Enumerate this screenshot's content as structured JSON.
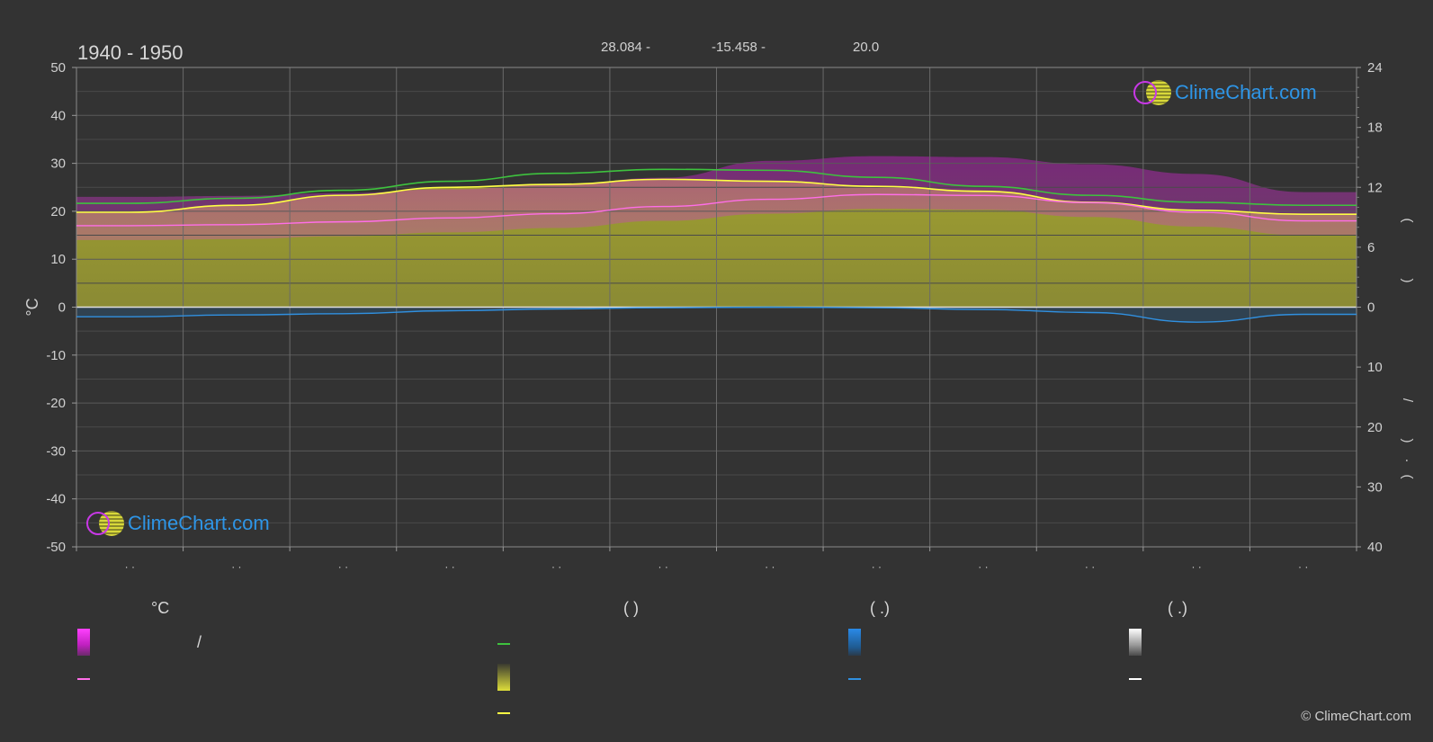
{
  "header": {
    "period": "1940 - 1950",
    "lat": "28.084 -",
    "lon": "-15.458 -",
    "elev": "20.0"
  },
  "logo_text": "ClimeChart.com",
  "copyright": "© ClimeChart.com",
  "legend": {
    "col1_head": "°C",
    "col2_head": "(          )",
    "col3_head": "(    .)",
    "col4_head": "(    .)",
    "slash": "/"
  },
  "colors": {
    "background": "#333333",
    "max_daylight": "#3ec23e",
    "sunshine": "#ffff44",
    "avg_temp": "#ff6ee8",
    "precipitation": "#3090e0",
    "temp_band": "#d020d0",
    "sunshine_fill": "#a5a532"
  },
  "chart_data": {
    "type": "area",
    "title": "1940 - 1950",
    "xlabel": "",
    "ylabel_left": "°C",
    "left_axis": {
      "range": [
        -50,
        50
      ],
      "ticks": [
        50,
        40,
        30,
        20,
        10,
        0,
        -10,
        -20,
        -30,
        -40,
        -50
      ]
    },
    "right_axis_top": {
      "range": [
        0,
        24
      ],
      "ticks": [
        24,
        18,
        12,
        6,
        0
      ]
    },
    "right_axis_bottom": {
      "range": [
        0,
        40
      ],
      "ticks": [
        0,
        10,
        20,
        30,
        40
      ]
    },
    "right_label_top": "(     )",
    "right_label_bottom": "/ (  ·  )",
    "month_tick_label": "· ·",
    "months": 12,
    "grid": true,
    "series": [
      {
        "key": "daylight",
        "values": [
          10.4,
          10.9,
          11.7,
          12.6,
          13.4,
          13.8,
          13.7,
          13.0,
          12.1,
          11.2,
          10.5,
          10.2
        ]
      },
      {
        "key": "sunshine",
        "values": [
          9.5,
          10.2,
          11.2,
          12.0,
          12.3,
          12.8,
          12.6,
          12.1,
          11.6,
          10.5,
          9.7,
          9.3
        ]
      },
      {
        "key": "avg_temp",
        "values": [
          17.0,
          17.2,
          17.8,
          18.6,
          19.5,
          21.0,
          22.5,
          23.5,
          23.3,
          21.8,
          19.8,
          18.0
        ]
      },
      {
        "key": "precip",
        "values": [
          1.6,
          1.3,
          1.1,
          0.6,
          0.3,
          0.1,
          0.0,
          0.1,
          0.4,
          0.9,
          2.5,
          1.2
        ]
      }
    ]
  }
}
